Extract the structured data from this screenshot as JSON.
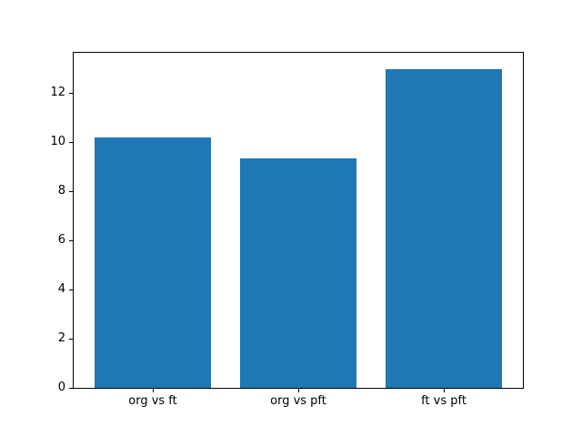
{
  "figure": {
    "background": "#ffffff"
  },
  "chart_data": {
    "type": "bar",
    "title": "",
    "xlabel": "",
    "ylabel": "",
    "categories": [
      "org vs ft",
      "org vs pft",
      "ft vs pft"
    ],
    "values": [
      10.2,
      9.35,
      13.0
    ],
    "bar_color": "#1f77b4",
    "bar_width": 0.8,
    "xlim": [
      -0.54,
      2.54
    ],
    "ylim": [
      0,
      13.65
    ],
    "yticks": [
      0,
      2,
      4,
      6,
      8,
      10,
      12
    ],
    "grid": false,
    "legend": null,
    "spine_color": "#000000",
    "text_color": "#000000"
  }
}
